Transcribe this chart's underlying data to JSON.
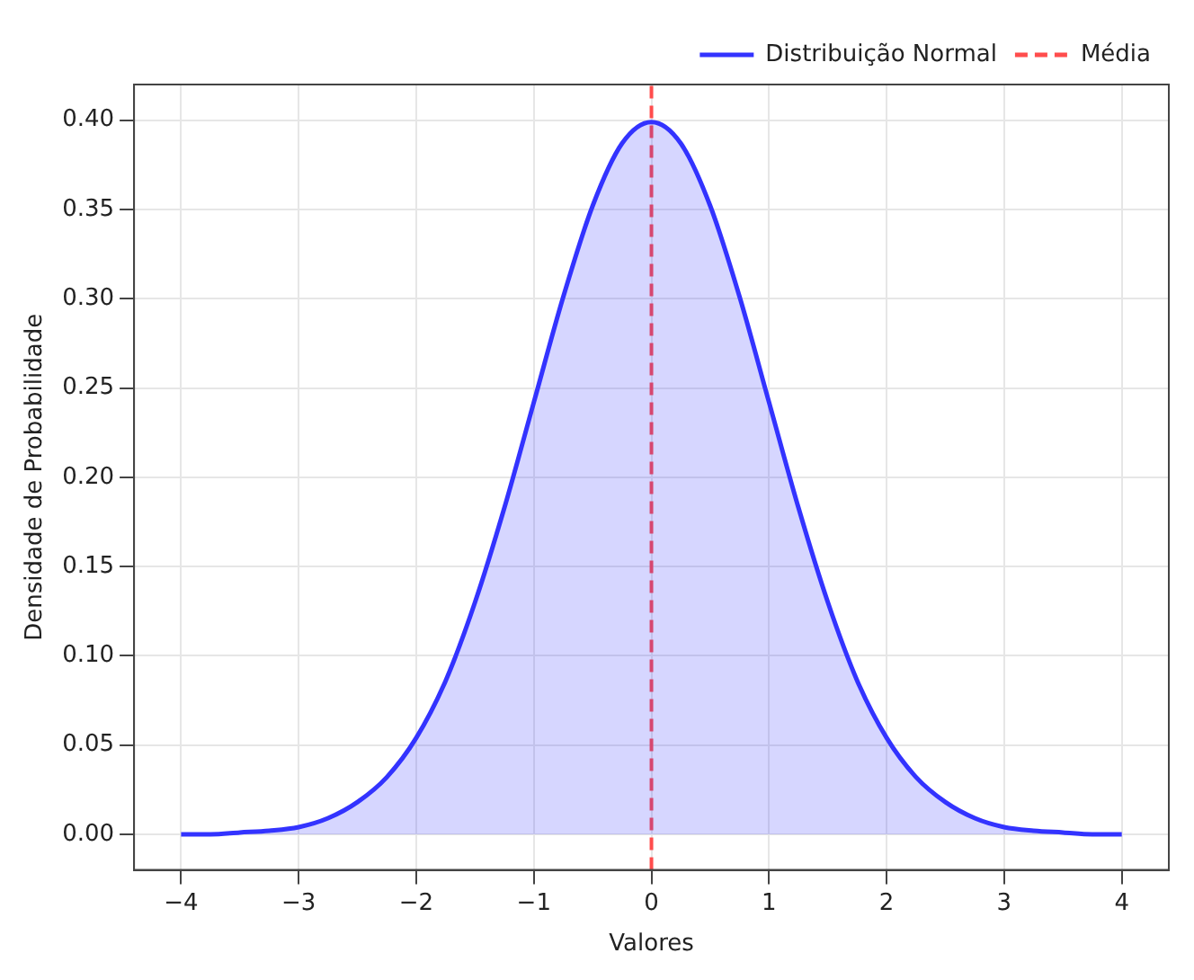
{
  "chart_data": {
    "type": "area",
    "xlabel": "Valores",
    "ylabel": "Densidade de Probabilidade",
    "x": [
      -4,
      -3.75,
      -3.5,
      -3.25,
      -3,
      -2.75,
      -2.5,
      -2.25,
      -2,
      -1.75,
      -1.5,
      -1.25,
      -1,
      -0.75,
      -0.5,
      -0.25,
      0,
      0.25,
      0.5,
      0.75,
      1,
      1.25,
      1.5,
      1.75,
      2,
      2.25,
      2.5,
      2.75,
      3,
      3.25,
      3.5,
      3.75,
      4
    ],
    "series": [
      {
        "name": "Distribuição Normal",
        "color": "#3333ff",
        "values": [
          0.0,
          0.0,
          0.001,
          0.002,
          0.004,
          0.009,
          0.018,
          0.032,
          0.054,
          0.086,
          0.13,
          0.183,
          0.242,
          0.301,
          0.352,
          0.387,
          0.399,
          0.387,
          0.352,
          0.301,
          0.242,
          0.183,
          0.13,
          0.086,
          0.054,
          0.032,
          0.018,
          0.009,
          0.004,
          0.002,
          0.001,
          0.0,
          0.0
        ]
      }
    ],
    "ref_lines": [
      {
        "axis": "x",
        "value": 0,
        "label": "Média",
        "color": "#ff4d4d",
        "line_style": "dashed"
      }
    ],
    "xlim": [
      -4.4,
      4.4
    ],
    "xticks": [
      {
        "value": -4,
        "label": "−4"
      },
      {
        "value": -3,
        "label": "−3"
      },
      {
        "value": -2,
        "label": "−2"
      },
      {
        "value": -1,
        "label": "−1"
      },
      0,
      1,
      2,
      3,
      4
    ],
    "ylim": [
      -0.02,
      0.42
    ],
    "yticks": [
      {
        "value": 0,
        "label": "0.00"
      },
      {
        "value": 0.05,
        "label": "0.05"
      },
      {
        "value": 0.1,
        "label": "0.10"
      },
      {
        "value": 0.15,
        "label": "0.15"
      },
      {
        "value": 0.2,
        "label": "0.20"
      },
      {
        "value": 0.25,
        "label": "0.25"
      },
      {
        "value": 0.3,
        "label": "0.30"
      },
      {
        "value": 0.35,
        "label": "0.35"
      },
      {
        "value": 0.4,
        "label": "0.40"
      }
    ],
    "grid": true,
    "legend": "top right",
    "line_style": "solid",
    "marker": "none"
  }
}
